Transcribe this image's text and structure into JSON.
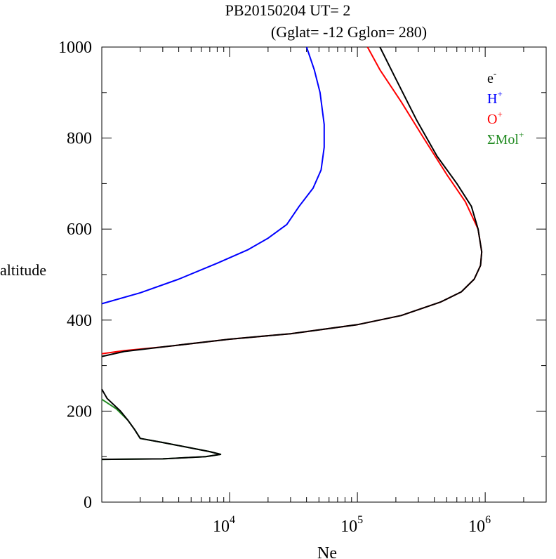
{
  "chart_data": {
    "type": "line",
    "title": "PB20150204   UT=  2",
    "subtitle": "(Gglat= -12   Gglon=  280)",
    "xlabel": "Ne",
    "ylabel": "altitude",
    "xscale": "log",
    "xlim": [
      1000,
      3000000
    ],
    "ylim": [
      0,
      1000
    ],
    "x_ticks": [
      {
        "value": 10000,
        "base": "10",
        "exp": "4"
      },
      {
        "value": 100000,
        "base": "10",
        "exp": "5"
      },
      {
        "value": 1000000,
        "base": "10",
        "exp": "6"
      }
    ],
    "y_ticks": [
      0,
      200,
      400,
      600,
      800,
      1000
    ],
    "grid": false,
    "legend_position": "top-right",
    "series": [
      {
        "name": "e",
        "sup": "-",
        "color": "#000000",
        "segments": [
          [
            [
              1000,
              320
            ],
            [
              1500,
              331
            ],
            [
              3000,
              341
            ],
            [
              10000,
              358
            ],
            [
              30000,
              370
            ],
            [
              100000,
              390
            ],
            [
              220000,
              410
            ],
            [
              450000,
              440
            ],
            [
              650000,
              462
            ],
            [
              820000,
              490
            ],
            [
              920000,
              520
            ],
            [
              940000,
              550
            ],
            [
              880000,
              600
            ],
            [
              780000,
              650
            ],
            [
              600000,
              700
            ],
            [
              420000,
              760
            ],
            [
              290000,
              840
            ],
            [
              200000,
              930
            ],
            [
              150000,
              1000
            ]
          ],
          [
            [
              1000,
              248
            ],
            [
              1100,
              228
            ],
            [
              1400,
              200
            ],
            [
              1600,
              180
            ],
            [
              1800,
              160
            ],
            [
              2000,
              140
            ],
            [
              3000,
              131
            ],
            [
              7000,
              111
            ],
            [
              8500,
              105
            ],
            [
              6500,
              100
            ],
            [
              3000,
              95
            ],
            [
              1000,
              94
            ]
          ]
        ]
      },
      {
        "name": "H",
        "sup": "+",
        "color": "#0000ff",
        "segments": [
          [
            [
              1000,
              436
            ],
            [
              2000,
              460
            ],
            [
              4000,
              490
            ],
            [
              8000,
              525
            ],
            [
              14000,
              555
            ],
            [
              20000,
              580
            ],
            [
              28000,
              610
            ],
            [
              35000,
              650
            ],
            [
              45000,
              690
            ],
            [
              52000,
              730
            ],
            [
              55000,
              780
            ],
            [
              55000,
              830
            ],
            [
              51000,
              900
            ],
            [
              46000,
              950
            ],
            [
              40000,
              1000
            ]
          ]
        ]
      },
      {
        "name": "O",
        "sup": "+",
        "color": "#ff0000",
        "segments": [
          [
            [
              1000,
              326
            ],
            [
              1500,
              333
            ],
            [
              3000,
              341
            ],
            [
              10000,
              358
            ],
            [
              30000,
              370
            ],
            [
              100000,
              390
            ],
            [
              220000,
              410
            ],
            [
              450000,
              440
            ],
            [
              650000,
              462
            ],
            [
              820000,
              490
            ],
            [
              920000,
              520
            ],
            [
              940000,
              550
            ],
            [
              880000,
              600
            ],
            [
              700000,
              660
            ],
            [
              500000,
              720
            ],
            [
              330000,
              800
            ],
            [
              220000,
              880
            ],
            [
              150000,
              950
            ],
            [
              120000,
              1000
            ]
          ]
        ]
      },
      {
        "name": "ΣMol",
        "sup": "+",
        "color": "#228b22",
        "segments": [
          [
            [
              1000,
              226
            ],
            [
              1300,
              205
            ],
            [
              1600,
              180
            ],
            [
              1800,
              160
            ],
            [
              2000,
              140
            ],
            [
              3000,
              131
            ],
            [
              7000,
              111
            ],
            [
              8500,
              105
            ],
            [
              6500,
              100
            ],
            [
              3000,
              95
            ],
            [
              1000,
              94
            ]
          ]
        ]
      }
    ]
  }
}
